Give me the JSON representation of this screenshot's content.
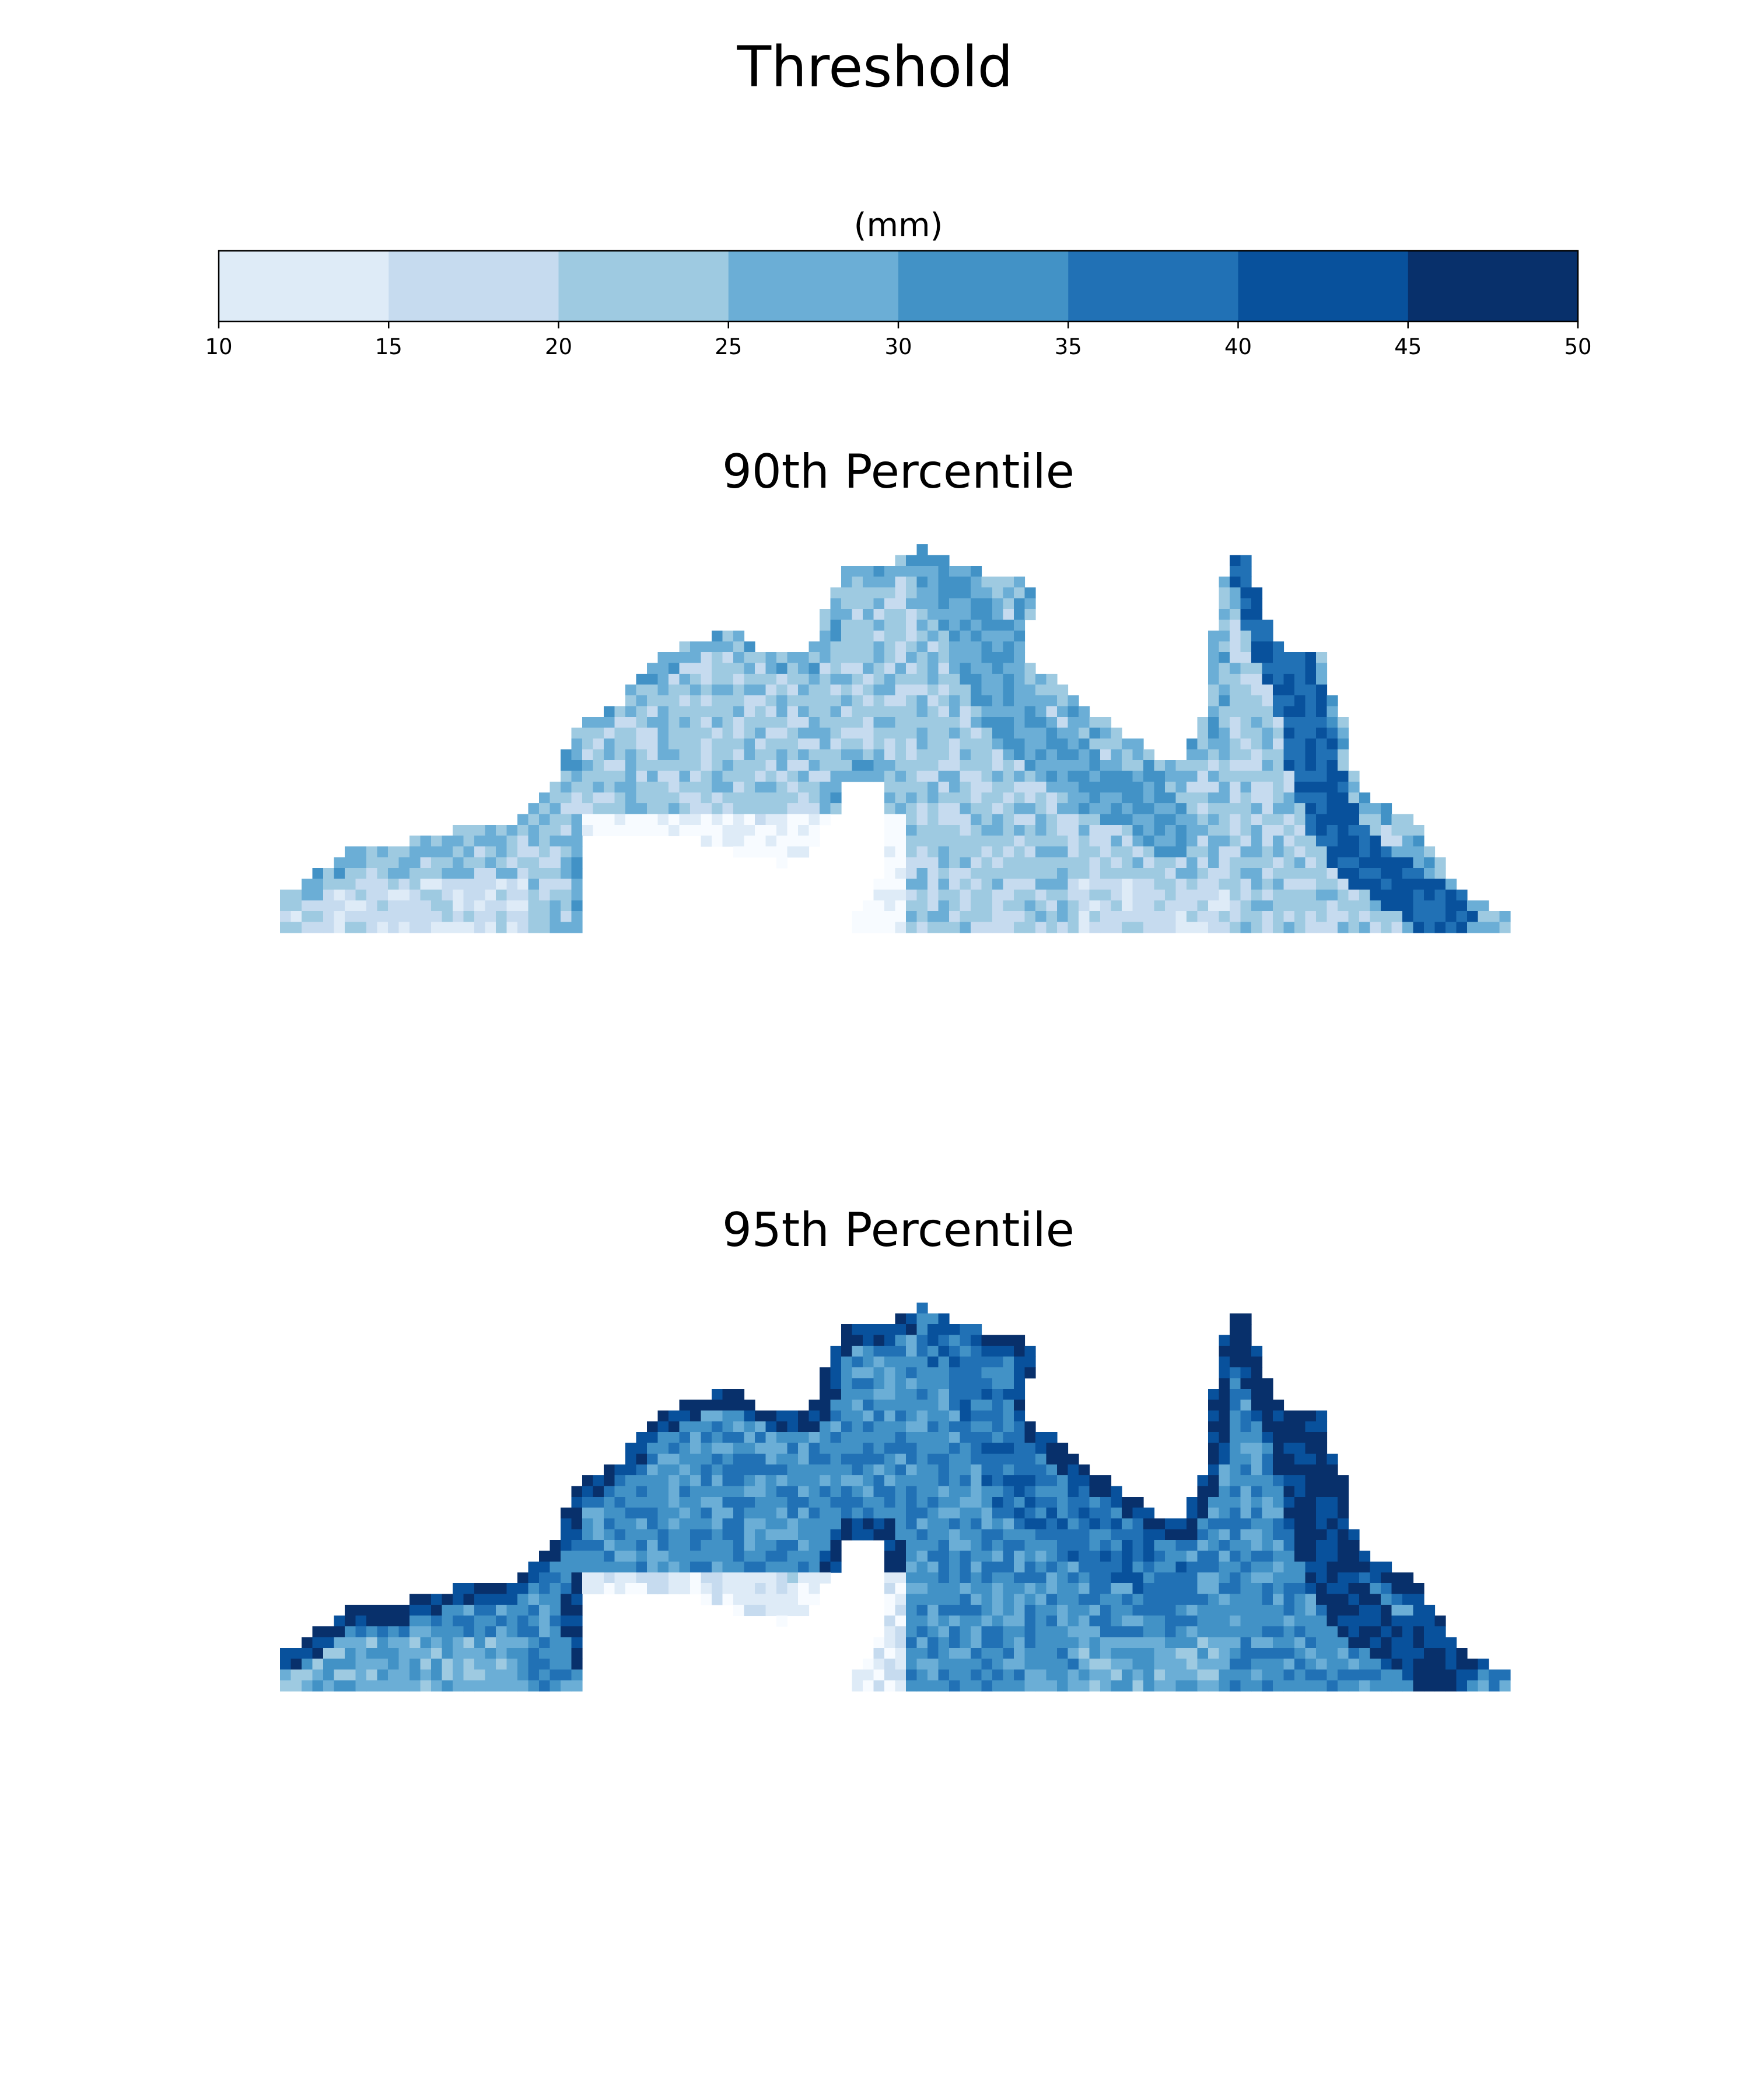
{
  "title": "Threshold",
  "colorbar": {
    "label": "(mm)",
    "ticks": [
      10,
      15,
      20,
      25,
      30,
      35,
      40,
      45,
      50
    ],
    "colors": [
      "#deebf7",
      "#c6dbef",
      "#9ecae1",
      "#6baed6",
      "#4292c6",
      "#2171b5",
      "#08519c",
      "#08306b"
    ],
    "unmasked_color": "#f7fbff"
  },
  "chart_data": [
    {
      "type": "heatmap",
      "title": "90th Percentile",
      "value_range": [
        10,
        50
      ],
      "value_levels": {
        "coast_strip": 27,
        "mainland": 22,
        "inland_low": 17,
        "gulf_margin": 12,
        "northern_peninsula": 30,
        "peninsula_spine": 40
      }
    },
    {
      "type": "heatmap",
      "title": "95th Percentile",
      "value_range": [
        10,
        50
      ],
      "value_levels": {
        "coast_strip": 45,
        "mainland": 33,
        "inland_low": 28,
        "gulf_margin": 17,
        "northern_peninsula": 38,
        "peninsula_spine": 47
      }
    }
  ]
}
